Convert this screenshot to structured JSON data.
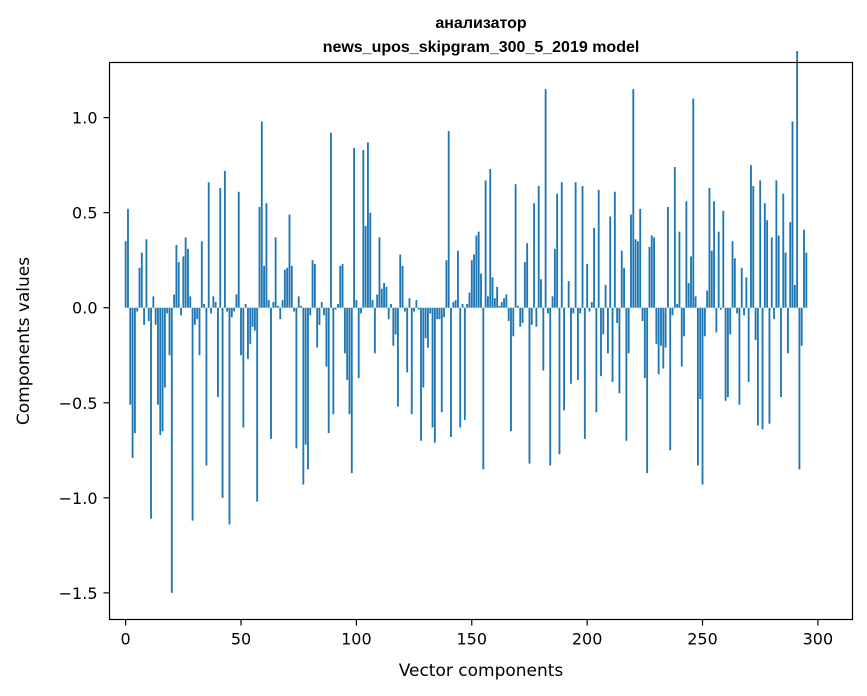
{
  "chart_data": {
    "type": "bar",
    "title": [
      "анализатор",
      "news_upos_skipgram_300_5_2019 model"
    ],
    "xlabel": "Vector components",
    "ylabel": "Components values",
    "xlim": [
      -7,
      315
    ],
    "ylim": [
      -1.64,
      1.29
    ],
    "xticks": [
      0,
      50,
      100,
      150,
      200,
      250,
      300
    ],
    "xtick_labels": [
      "0",
      "50",
      "100",
      "150",
      "200",
      "250",
      "300"
    ],
    "yticks": [
      -1.5,
      -1.0,
      -0.5,
      0.0,
      0.5,
      1.0
    ],
    "ytick_labels": [
      "−1.5",
      "−1.0",
      "−0.5",
      "0.0",
      "0.5",
      "1.0"
    ],
    "bar_color": "#1f77b4",
    "grid": false,
    "values": [
      0.35,
      0.52,
      -0.51,
      -0.79,
      -0.66,
      -0.02,
      0.21,
      0.29,
      -0.09,
      0.36,
      -0.07,
      -1.11,
      0.06,
      -0.09,
      -0.51,
      -0.67,
      -0.65,
      -0.42,
      -0.03,
      -0.25,
      -1.5,
      0.07,
      0.33,
      0.24,
      -0.04,
      0.27,
      0.37,
      0.31,
      0.06,
      -1.12,
      -0.09,
      -0.06,
      -0.25,
      0.35,
      0.02,
      -0.83,
      0.66,
      -0.03,
      0.06,
      0.03,
      -0.47,
      0.63,
      -1.0,
      0.72,
      -0.02,
      -1.14,
      -0.05,
      -0.02,
      0.07,
      0.61,
      -0.25,
      -0.63,
      0.02,
      -0.27,
      -0.19,
      -0.1,
      -0.12,
      -1.02,
      0.53,
      0.98,
      0.22,
      0.55,
      0.04,
      -0.69,
      0.03,
      0.37,
      0.01,
      -0.06,
      0.04,
      0.2,
      0.21,
      0.49,
      0.22,
      -0.02,
      -0.74,
      0.06,
      0.01,
      -0.93,
      -0.72,
      -0.85,
      -0.04,
      0.25,
      0.23,
      -0.21,
      -0.09,
      0.03,
      -0.04,
      -0.31,
      -0.66,
      0.92,
      -0.56,
      -0.01,
      0.02,
      0.22,
      0.23,
      -0.24,
      -0.38,
      -0.56,
      -0.87,
      0.84,
      0.04,
      -0.37,
      -0.03,
      0.83,
      0.43,
      0.87,
      0.5,
      0.04,
      -0.24,
      0.07,
      0.37,
      0.1,
      0.13,
      0.11,
      -0.06,
      0.02,
      -0.2,
      -0.14,
      -0.52,
      0.28,
      0.22,
      -0.02,
      -0.34,
      0.05,
      -0.56,
      -0.02,
      0.04,
      -0.01,
      -0.7,
      -0.42,
      -0.16,
      -0.21,
      -0.03,
      -0.63,
      -0.71,
      -0.06,
      -0.06,
      -0.55,
      -0.05,
      0.25,
      0.93,
      -0.68,
      0.03,
      0.04,
      0.3,
      -0.63,
      0.02,
      -0.59,
      0.02,
      0.08,
      0.25,
      0.28,
      0.38,
      0.4,
      0.18,
      -0.85,
      0.67,
      0.06,
      0.73,
      0.16,
      0.05,
      0.11,
      0.01,
      0.03,
      0.05,
      0.07,
      -0.07,
      -0.65,
      -0.15,
      0.65,
      0.01,
      -0.1,
      -0.08,
      0.24,
      0.34,
      -0.82,
      -0.09,
      0.55,
      -0.1,
      0.64,
      0.15,
      -0.33,
      1.15,
      -0.03,
      -0.83,
      0.06,
      0.31,
      0.6,
      -0.77,
      0.66,
      -0.54,
      0.0,
      0.14,
      -0.4,
      -0.03,
      0.66,
      -0.38,
      -0.03,
      0.64,
      -0.69,
      0.23,
      -0.02,
      0.03,
      0.42,
      -0.55,
      0.62,
      -0.36,
      -0.14,
      0.12,
      -0.24,
      0.48,
      -0.39,
      0.61,
      -0.08,
      -0.45,
      0.3,
      0.21,
      -0.7,
      -0.24,
      0.49,
      1.15,
      0.36,
      0.35,
      0.52,
      -0.07,
      -0.37,
      -0.87,
      0.32,
      0.38,
      0.37,
      -0.19,
      -0.35,
      -0.2,
      -0.32,
      -0.21,
      0.53,
      -0.75,
      -0.04,
      0.74,
      0.02,
      0.4,
      -0.31,
      -0.15,
      0.56,
      0.13,
      0.27,
      1.1,
      0.06,
      -0.83,
      -0.48,
      -0.93,
      -0.15,
      0.09,
      0.63,
      0.3,
      0.56,
      -0.13,
      0.4,
      -0.01,
      0.51,
      -0.49,
      -0.47,
      -0.14,
      0.35,
      0.26,
      -0.03,
      -0.51,
      0.21,
      -0.04,
      0.16,
      -0.39,
      0.75,
      0.64,
      -0.17,
      -0.62,
      0.67,
      -0.64,
      0.55,
      0.46,
      -0.61,
      0.37,
      -0.06,
      0.67,
      0.38,
      -0.47,
      0.6,
      0.29,
      -0.24,
      0.45,
      0.98,
      0.12,
      1.35,
      -0.85,
      -0.2,
      0.41,
      0.29
    ]
  }
}
